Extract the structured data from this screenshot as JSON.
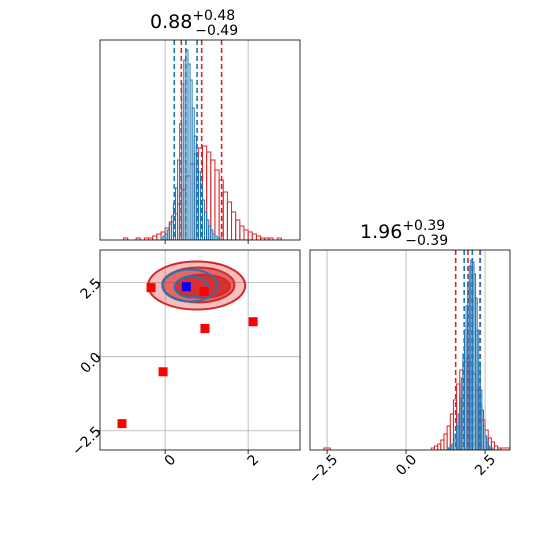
{
  "chart_data": [
    {
      "type": "histogram",
      "title": {
        "main": "0.88",
        "sup": "+0.48",
        "sub": "−0.49"
      },
      "xlim": [
        -1.57,
        3.25
      ],
      "ylim": [
        0,
        100
      ],
      "xticks": [
        0,
        2
      ],
      "tick_labels": false,
      "grid": true,
      "series": [
        {
          "color": "#d62728",
          "bins": [
            -1.0,
            -0.9,
            -0.8,
            -0.7,
            -0.6,
            -0.5,
            -0.4,
            -0.3,
            -0.2,
            -0.1,
            0.0,
            0.1,
            0.2,
            0.3,
            0.4,
            0.5,
            0.6,
            0.7,
            0.8,
            0.9,
            1.0,
            1.1,
            1.2,
            1.3,
            1.4,
            1.5,
            1.6,
            1.7,
            1.8,
            1.9,
            2.0,
            2.1,
            2.2,
            2.3,
            2.4,
            2.5,
            2.6,
            2.7,
            2.8,
            2.9,
            3.0,
            3.1,
            3.2
          ],
          "counts": [
            1,
            0,
            0,
            1,
            0,
            1,
            1,
            2,
            3,
            4,
            6,
            9,
            13,
            18,
            25,
            32,
            38,
            43,
            46,
            47,
            44,
            40,
            35,
            30,
            24,
            19,
            14,
            10,
            7,
            5,
            4,
            3,
            2,
            1,
            1,
            1,
            0,
            1,
            0,
            0,
            0,
            0
          ],
          "quantiles": [
            0.39,
            0.88,
            1.36
          ]
        },
        {
          "color": "#1f77b4",
          "bins": [
            -0.1,
            -0.05,
            0.0,
            0.05,
            0.1,
            0.15,
            0.2,
            0.25,
            0.3,
            0.35,
            0.4,
            0.45,
            0.5,
            0.55,
            0.6,
            0.65,
            0.7,
            0.75,
            0.8,
            0.85,
            0.9,
            0.95,
            1.0,
            1.05,
            1.1,
            1.15,
            1.2,
            1.25,
            1.3,
            1.35,
            1.4
          ],
          "counts": [
            1,
            2,
            3,
            5,
            8,
            12,
            18,
            26,
            40,
            58,
            78,
            90,
            95,
            88,
            80,
            66,
            52,
            42,
            34,
            28,
            20,
            14,
            10,
            7,
            5,
            3,
            2,
            1,
            1,
            0
          ],
          "quantiles": [
            0.22,
            0.5,
            0.77
          ]
        }
      ]
    },
    {
      "type": "scatter",
      "xlim": [
        -1.57,
        3.25
      ],
      "ylim": [
        -3.15,
        3.6
      ],
      "xticks": [
        0,
        2
      ],
      "yticks": [
        {
          "value": -2.5,
          "label": "−2.5"
        },
        {
          "value": 0,
          "label": "0.0"
        },
        {
          "value": 2.5,
          "label": "2.5"
        }
      ],
      "tick_labels": true,
      "grid": true,
      "contours": [
        {
          "color": "#d62728",
          "filled": true,
          "levels": [
            {
              "cx": 0.76,
              "cy": 2.4,
              "rx": 1.17,
              "ry": 0.81
            },
            {
              "cx": 0.8,
              "cy": 2.42,
              "rx": 0.87,
              "ry": 0.59
            },
            {
              "cx": 0.9,
              "cy": 2.38,
              "rx": 0.66,
              "ry": 0.39
            }
          ]
        },
        {
          "color": "#1f77b4",
          "filled": false,
          "levels": [
            {
              "cx": 0.6,
              "cy": 2.4,
              "rx": 0.66,
              "ry": 0.54
            },
            {
              "cx": 0.63,
              "cy": 2.35,
              "rx": 0.4,
              "ry": 0.35
            }
          ]
        }
      ],
      "series": [
        {
          "color": "#ff0000",
          "x": [
            -0.34,
            0.94,
            0.96,
            2.12,
            -0.05,
            -1.04
          ],
          "y": [
            2.33,
            2.2,
            0.95,
            1.18,
            -0.51,
            -2.26
          ]
        },
        {
          "color": "#0000ff",
          "x": [
            0.51
          ],
          "y": [
            2.36
          ]
        }
      ]
    },
    {
      "type": "histogram",
      "title": {
        "main": "1.96",
        "sup": "+0.39",
        "sub": "−0.39"
      },
      "xlim": [
        -3.04,
        3.29
      ],
      "ylim": [
        0,
        100
      ],
      "xticks": [
        {
          "value": -2.5,
          "label": "−2.5"
        },
        {
          "value": 0,
          "label": "0.0"
        },
        {
          "value": 2.5,
          "label": "2.5"
        }
      ],
      "tick_labels": true,
      "grid": true,
      "series": [
        {
          "color": "#d62728",
          "bins": [
            -2.6,
            -2.4,
            0.8,
            0.9,
            1.0,
            1.1,
            1.2,
            1.3,
            1.4,
            1.5,
            1.6,
            1.7,
            1.8,
            1.9,
            2.0,
            2.1,
            2.2,
            2.3,
            2.4,
            2.5,
            2.6,
            2.7,
            2.8,
            2.9,
            3.0,
            3.29
          ],
          "counts": [
            1,
            0,
            1,
            2,
            3,
            5,
            8,
            12,
            18,
            25,
            33,
            40,
            44,
            46,
            44,
            38,
            30,
            22,
            15,
            10,
            6,
            4,
            2,
            1,
            1
          ],
          "quantiles": [
            1.57,
            1.96,
            2.35
          ]
        },
        {
          "color": "#1f77b4",
          "bins": [
            1.3,
            1.35,
            1.4,
            1.45,
            1.5,
            1.55,
            1.6,
            1.65,
            1.7,
            1.75,
            1.8,
            1.85,
            1.9,
            1.95,
            2.0,
            2.05,
            2.1,
            2.15,
            2.2,
            2.25,
            2.3,
            2.35,
            2.4,
            2.45,
            2.5,
            2.55,
            2.6,
            2.65,
            2.7,
            2.75,
            2.8
          ],
          "counts": [
            1,
            1,
            2,
            3,
            5,
            8,
            12,
            18,
            26,
            36,
            48,
            60,
            72,
            84,
            92,
            95,
            94,
            88,
            76,
            60,
            44,
            30,
            20,
            12,
            7,
            4,
            2,
            1,
            1,
            0
          ],
          "quantiles": [
            1.84,
            2.1,
            2.34
          ]
        }
      ]
    }
  ]
}
